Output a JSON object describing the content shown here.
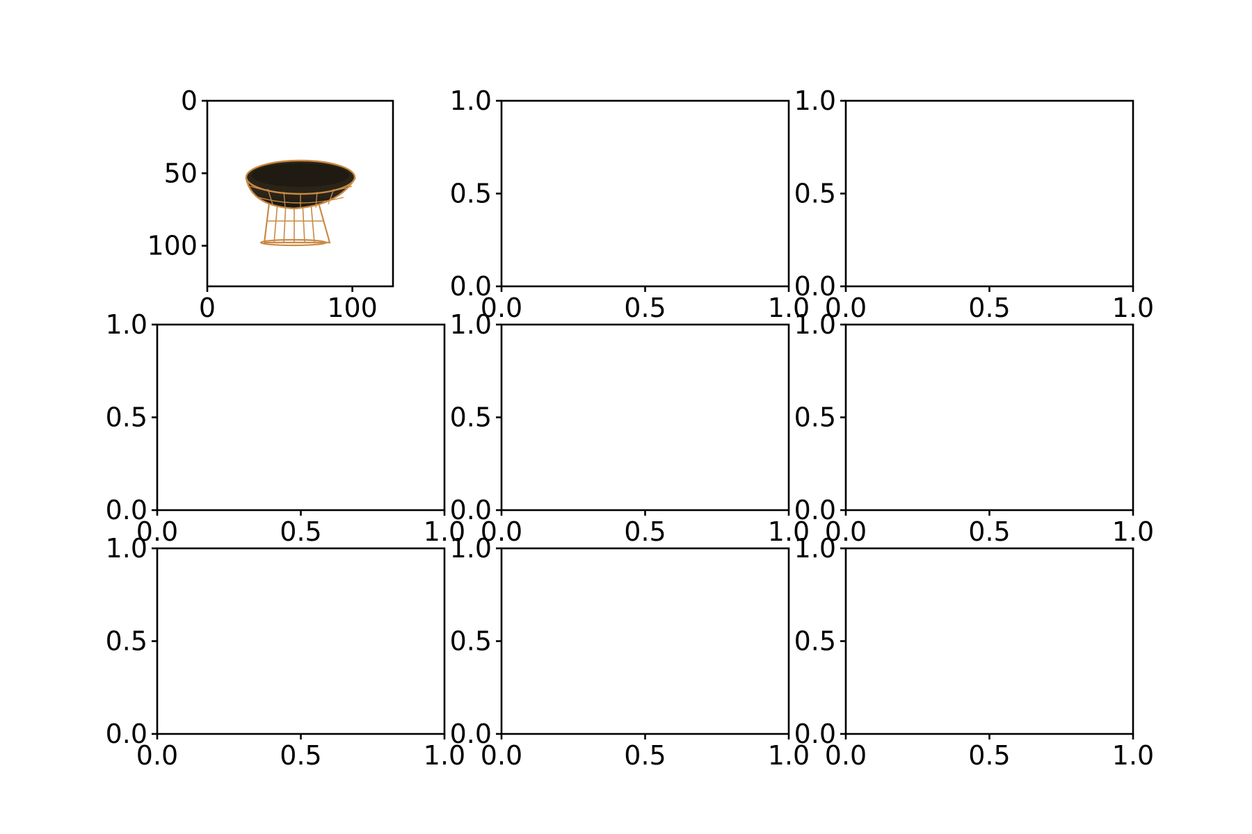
{
  "chart_data": [
    {
      "type": "image",
      "title": "",
      "xlabel": "",
      "ylabel": "",
      "xlim": [
        0,
        128
      ],
      "ylim": [
        128,
        0
      ],
      "yaxis_inverted": true,
      "x_tick_labels": [
        "0",
        "100"
      ],
      "y_tick_labels": [
        "0",
        "50",
        "100"
      ],
      "image_content": "chair-icon",
      "image_colors": {
        "seat": "#2a2418",
        "frame": "#c98a44"
      }
    },
    {
      "type": "empty",
      "title": "",
      "xlim": [
        0,
        1
      ],
      "ylim": [
        0,
        1
      ],
      "x_tick_labels": [
        "0.0",
        "0.5",
        "1.0"
      ],
      "y_tick_labels": [
        "0.0",
        "0.5",
        "1.0"
      ]
    },
    {
      "type": "empty",
      "title": "",
      "xlim": [
        0,
        1
      ],
      "ylim": [
        0,
        1
      ],
      "x_tick_labels": [
        "0.0",
        "0.5",
        "1.0"
      ],
      "y_tick_labels": [
        "0.0",
        "0.5",
        "1.0"
      ]
    },
    {
      "type": "empty",
      "title": "",
      "xlim": [
        0,
        1
      ],
      "ylim": [
        0,
        1
      ],
      "x_tick_labels": [
        "0.0",
        "0.5",
        "1.0"
      ],
      "y_tick_labels": [
        "0.0",
        "0.5",
        "1.0"
      ]
    },
    {
      "type": "empty",
      "title": "",
      "xlim": [
        0,
        1
      ],
      "ylim": [
        0,
        1
      ],
      "x_tick_labels": [
        "0.0",
        "0.5",
        "1.0"
      ],
      "y_tick_labels": [
        "0.0",
        "0.5",
        "1.0"
      ]
    },
    {
      "type": "empty",
      "title": "",
      "xlim": [
        0,
        1
      ],
      "ylim": [
        0,
        1
      ],
      "x_tick_labels": [
        "0.0",
        "0.5",
        "1.0"
      ],
      "y_tick_labels": [
        "0.0",
        "0.5",
        "1.0"
      ]
    },
    {
      "type": "empty",
      "title": "",
      "xlim": [
        0,
        1
      ],
      "ylim": [
        0,
        1
      ],
      "x_tick_labels": [
        "0.0",
        "0.5",
        "1.0"
      ],
      "y_tick_labels": [
        "0.0",
        "0.5",
        "1.0"
      ]
    },
    {
      "type": "empty",
      "title": "",
      "xlim": [
        0,
        1
      ],
      "ylim": [
        0,
        1
      ],
      "x_tick_labels": [
        "0.0",
        "0.5",
        "1.0"
      ],
      "y_tick_labels": [
        "0.0",
        "0.5",
        "1.0"
      ]
    },
    {
      "type": "empty",
      "title": "",
      "xlim": [
        0,
        1
      ],
      "ylim": [
        0,
        1
      ],
      "x_tick_labels": [
        "0.0",
        "0.5",
        "1.0"
      ],
      "y_tick_labels": [
        "0.0",
        "0.5",
        "1.0"
      ]
    }
  ]
}
